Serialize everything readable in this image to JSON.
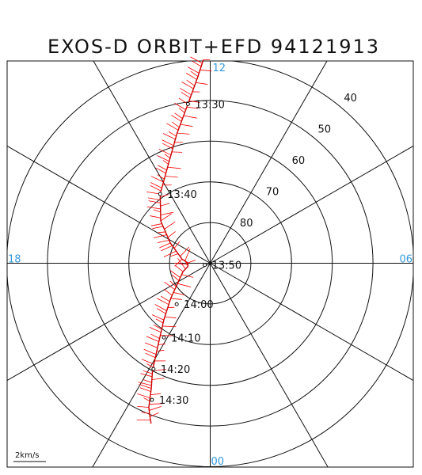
{
  "chart_data": {
    "type": "polar-orbit",
    "title": "EXOS-D ORBIT+EFD 94121913",
    "mlt_labels": [
      {
        "text": "12",
        "hour": 12
      },
      {
        "text": "06",
        "hour": 6
      },
      {
        "text": "18",
        "hour": 18
      },
      {
        "text": "00",
        "hour": 0
      }
    ],
    "lat_circles": [
      40,
      50,
      60,
      70,
      80
    ],
    "lat_range": [
      40,
      90
    ],
    "lat_labels": [
      "40",
      "50",
      "60",
      "70",
      "80"
    ],
    "spoke_hours": [
      0,
      2,
      4,
      6,
      8,
      10,
      12,
      14,
      16,
      18,
      20,
      22
    ],
    "orbit_track": [
      {
        "hour": 12.13,
        "lat": 40.0
      },
      {
        "hour": 12.25,
        "lat": 44.0
      },
      {
        "hour": 12.53,
        "lat": 50.5
      },
      {
        "hour": 12.95,
        "lat": 57.0
      },
      {
        "hour": 13.46,
        "lat": 63.0
      },
      {
        "hour": 14.39,
        "lat": 69.0
      },
      {
        "hour": 15.3,
        "lat": 74.0
      },
      {
        "hour": 16.2,
        "lat": 79.0
      },
      {
        "hour": 17.45,
        "lat": 83.0
      },
      {
        "hour": 17.95,
        "lat": 84.5
      },
      {
        "hour": 18.53,
        "lat": 84.5
      },
      {
        "hour": 19.15,
        "lat": 83.0
      },
      {
        "hour": 20.78,
        "lat": 77.0
      },
      {
        "hour": 21.38,
        "lat": 72.0
      },
      {
        "hour": 21.87,
        "lat": 65.5
      },
      {
        "hour": 22.12,
        "lat": 60.0
      },
      {
        "hour": 22.32,
        "lat": 56.0
      },
      {
        "hour": 22.46,
        "lat": 51.5
      },
      {
        "hour": 22.57,
        "lat": 49.5
      },
      {
        "hour": 22.65,
        "lat": 48.0
      }
    ],
    "time_marks": [
      {
        "label": "13:30",
        "hour": 12.53,
        "lat": 50.5
      },
      {
        "label": "13:40",
        "hour": 14.39,
        "lat": 69.0
      },
      {
        "label": "13:50",
        "hour": 19.15,
        "lat": 88.6
      },
      {
        "label": "14:00",
        "hour": 21.38,
        "lat": 77.0
      },
      {
        "label": "14:10",
        "hour": 21.87,
        "lat": 68.5
      },
      {
        "label": "14:20",
        "hour": 22.12,
        "lat": 60.5
      },
      {
        "label": "14:30",
        "hour": 22.46,
        "lat": 53.5
      }
    ],
    "vector_scale": {
      "label": "2km/s",
      "value": 2
    }
  },
  "colors": {
    "grid": "#111111",
    "mlt_text": "#3399dd",
    "vectors": "#ff0000",
    "track": "#cc0000"
  }
}
